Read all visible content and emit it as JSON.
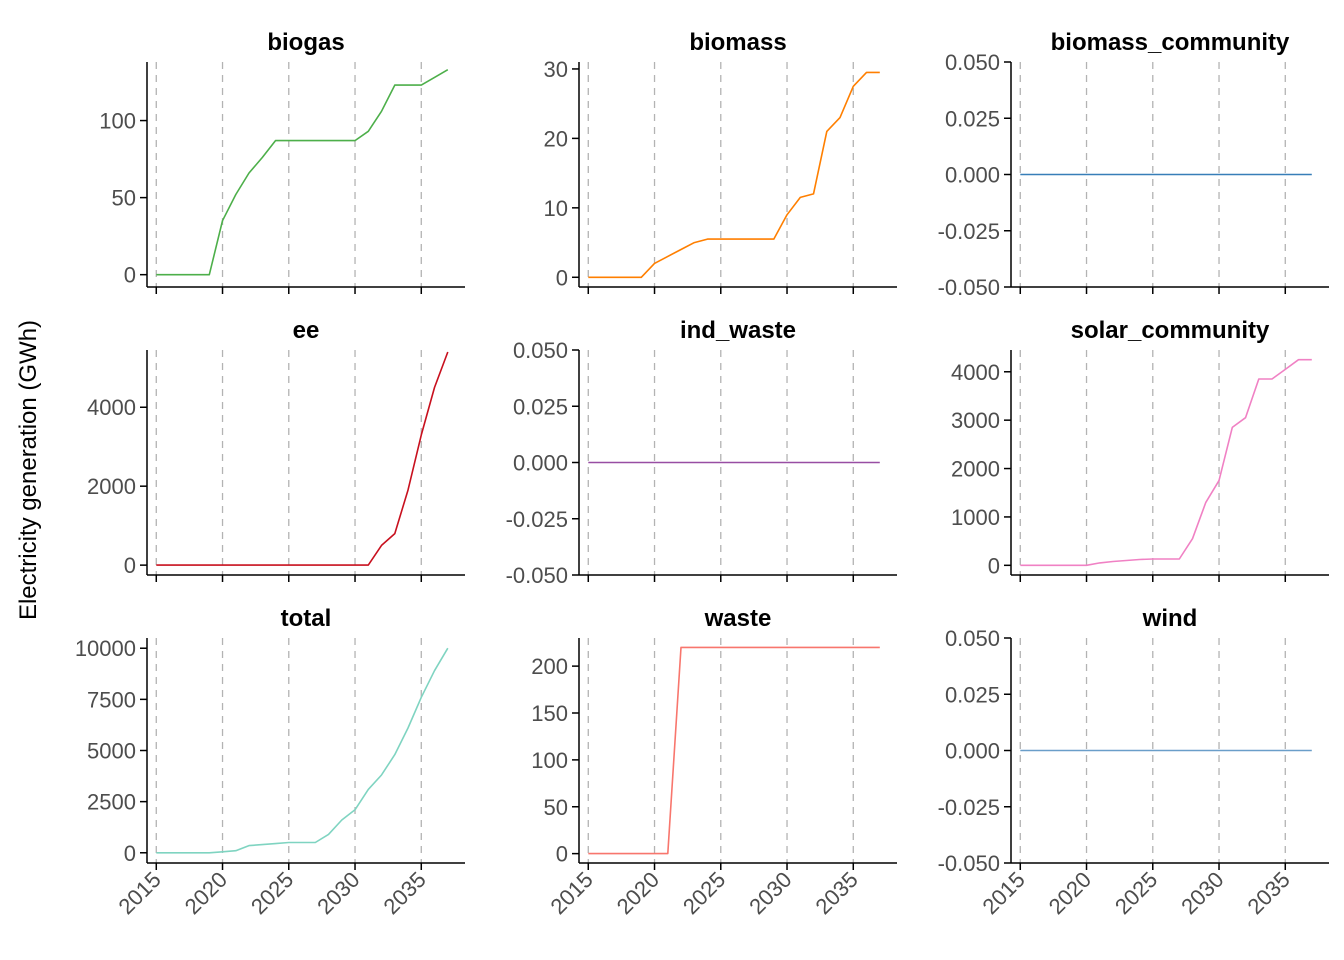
{
  "chart_data": {
    "type": "line",
    "ylabel": "Electricity generation (GWh)",
    "xlabel": "",
    "x_ticks": [
      2015,
      2020,
      2025,
      2030,
      2035
    ],
    "x_ticks_rotated": true,
    "grid": "vertical dashed at x ticks",
    "panels": [
      {
        "name": "biogas",
        "color": "#4DAF4A",
        "ylim": [
          -8,
          138
        ],
        "yticks": [
          0,
          50,
          100
        ],
        "ytick_labels": [
          "0",
          "50",
          "100"
        ],
        "x": [
          2015,
          2016,
          2017,
          2018,
          2019,
          2020,
          2021,
          2022,
          2023,
          2024,
          2025,
          2026,
          2027,
          2028,
          2029,
          2030,
          2031,
          2032,
          2033,
          2034,
          2035,
          2036,
          2037
        ],
        "y": [
          0,
          0,
          0,
          0,
          0,
          35,
          52,
          66,
          76,
          87,
          87,
          87,
          87,
          87,
          87,
          87,
          93,
          106,
          123,
          123,
          123,
          128,
          133
        ]
      },
      {
        "name": "biomass",
        "color": "#FF7F00",
        "ylim": [
          -1.4,
          31
        ],
        "yticks": [
          0,
          10,
          20,
          30
        ],
        "ytick_labels": [
          "0",
          "10",
          "20",
          "30"
        ],
        "x": [
          2015,
          2016,
          2017,
          2018,
          2019,
          2020,
          2021,
          2022,
          2023,
          2024,
          2025,
          2026,
          2027,
          2028,
          2029,
          2030,
          2031,
          2032,
          2033,
          2034,
          2035,
          2036,
          2037
        ],
        "y": [
          0,
          0,
          0,
          0,
          0,
          2,
          3,
          4,
          5,
          5.5,
          5.5,
          5.5,
          5.5,
          5.5,
          5.5,
          9,
          11.5,
          12,
          21,
          23,
          27.5,
          29.5,
          29.5
        ]
      },
      {
        "name": "biomass_community",
        "color": "#377EB8",
        "ylim": [
          -0.05,
          0.05
        ],
        "yticks": [
          -0.05,
          -0.025,
          0,
          0.025,
          0.05
        ],
        "ytick_labels": [
          "-0.050",
          "-0.025",
          "0.000",
          "0.025",
          "0.050"
        ],
        "x": [
          2015,
          2037
        ],
        "y": [
          0,
          0
        ]
      },
      {
        "name": "ee",
        "color": "#C8101E",
        "ylim": [
          -250,
          5450
        ],
        "yticks": [
          0,
          2000,
          4000
        ],
        "ytick_labels": [
          "0",
          "2000",
          "4000"
        ],
        "x": [
          2015,
          2016,
          2017,
          2018,
          2019,
          2020,
          2021,
          2022,
          2023,
          2024,
          2025,
          2026,
          2027,
          2028,
          2029,
          2030,
          2031,
          2032,
          2033,
          2034,
          2035,
          2036,
          2037
        ],
        "y": [
          0,
          0,
          0,
          0,
          0,
          0,
          0,
          0,
          0,
          0,
          0,
          0,
          0,
          0,
          0,
          0,
          0,
          500,
          800,
          1900,
          3300,
          4500,
          5400
        ]
      },
      {
        "name": "ind_waste",
        "color": "#984EA3",
        "ylim": [
          -0.05,
          0.05
        ],
        "yticks": [
          -0.05,
          -0.025,
          0,
          0.025,
          0.05
        ],
        "ytick_labels": [
          "-0.050",
          "-0.025",
          "0.000",
          "0.025",
          "0.050"
        ],
        "x": [
          2015,
          2037
        ],
        "y": [
          0,
          0
        ]
      },
      {
        "name": "solar_community",
        "color": "#F081C4",
        "ylim": [
          -200,
          4450
        ],
        "yticks": [
          0,
          1000,
          2000,
          3000,
          4000
        ],
        "ytick_labels": [
          "0",
          "1000",
          "2000",
          "3000",
          "4000"
        ],
        "x": [
          2015,
          2016,
          2017,
          2018,
          2019,
          2020,
          2021,
          2022,
          2023,
          2024,
          2025,
          2026,
          2027,
          2028,
          2029,
          2030,
          2031,
          2032,
          2033,
          2034,
          2035,
          2036,
          2037
        ],
        "y": [
          0,
          0,
          0,
          0,
          0,
          0,
          50,
          80,
          100,
          120,
          130,
          130,
          130,
          550,
          1300,
          1750,
          2850,
          3050,
          3850,
          3850,
          4050,
          4250,
          4250
        ]
      },
      {
        "name": "total",
        "color": "#7FD4C1",
        "ylim": [
          -500,
          10500
        ],
        "yticks": [
          0,
          2500,
          5000,
          7500,
          10000
        ],
        "ytick_labels": [
          "0",
          "2500",
          "5000",
          "7500",
          "10000"
        ],
        "x": [
          2015,
          2016,
          2017,
          2018,
          2019,
          2020,
          2021,
          2022,
          2023,
          2024,
          2025,
          2026,
          2027,
          2028,
          2029,
          2030,
          2031,
          2032,
          2033,
          2034,
          2035,
          2036,
          2037
        ],
        "y": [
          0,
          0,
          0,
          0,
          0,
          50,
          100,
          350,
          400,
          450,
          500,
          500,
          500,
          900,
          1600,
          2100,
          3100,
          3800,
          4800,
          6100,
          7600,
          8900,
          10000
        ]
      },
      {
        "name": "waste",
        "color": "#F8766D",
        "ylim": [
          -10,
          230
        ],
        "yticks": [
          0,
          50,
          100,
          150,
          200
        ],
        "ytick_labels": [
          "0",
          "50",
          "100",
          "150",
          "200"
        ],
        "x": [
          2015,
          2016,
          2017,
          2018,
          2019,
          2020,
          2021,
          2022,
          2023,
          2024,
          2025,
          2026,
          2027,
          2028,
          2029,
          2030,
          2031,
          2032,
          2033,
          2034,
          2035,
          2036,
          2037
        ],
        "y": [
          0,
          0,
          0,
          0,
          0,
          0,
          0,
          220,
          220,
          220,
          220,
          220,
          220,
          220,
          220,
          220,
          220,
          220,
          220,
          220,
          220,
          220,
          220
        ]
      },
      {
        "name": "wind",
        "color": "#6A9EC9",
        "ylim": [
          -0.05,
          0.05
        ],
        "yticks": [
          -0.05,
          -0.025,
          0,
          0.025,
          0.05
        ],
        "ytick_labels": [
          "-0.050",
          "-0.025",
          "0.000",
          "0.025",
          "0.050"
        ],
        "x": [
          2015,
          2037
        ],
        "y": [
          0,
          0
        ]
      }
    ]
  }
}
